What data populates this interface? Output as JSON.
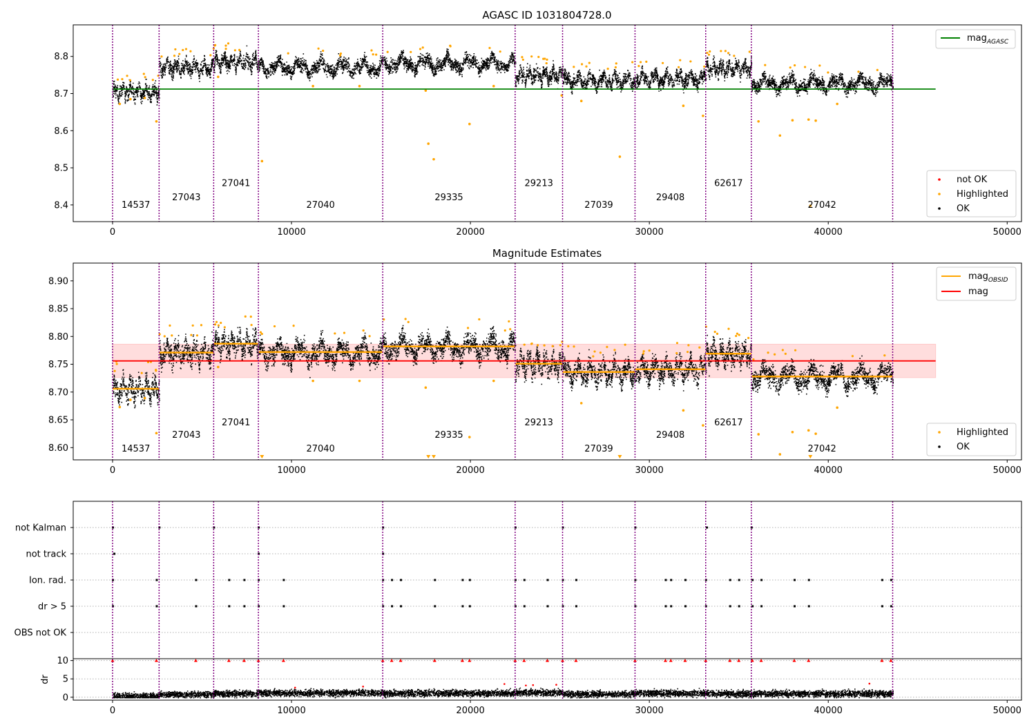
{
  "chart_data": [
    {
      "type": "scatter",
      "title": "AGASC ID 1031804728.0",
      "xlim": [
        -2200,
        50800
      ],
      "ylim": [
        8.355,
        8.885
      ],
      "x_ticks": [
        0,
        10000,
        20000,
        30000,
        40000,
        50000
      ],
      "x_tick_labels": [
        "0",
        "10000",
        "20000",
        "30000",
        "40000",
        "50000"
      ],
      "y_ticks": [
        8.4,
        8.5,
        8.6,
        8.7,
        8.8
      ],
      "y_tick_labels": [
        "8.4",
        "8.5",
        "8.6",
        "8.7",
        "8.8"
      ],
      "reference_line": {
        "label": "mag_AGASC",
        "value": 8.712,
        "x_range": [
          0,
          46000
        ],
        "color": "#008000"
      },
      "legends": [
        {
          "position": "top-right",
          "items": [
            {
              "label": "mag",
              "subscript": "AGASC",
              "kind": "line",
              "color": "#008000"
            }
          ]
        },
        {
          "position": "bottom-right",
          "items": [
            {
              "label": "not OK",
              "kind": "dot",
              "color": "#ff0000"
            },
            {
              "label": "Highlighted",
              "kind": "dot",
              "color": "#ffa500"
            },
            {
              "label": "OK",
              "kind": "dot",
              "color": "#000000"
            }
          ]
        }
      ],
      "highlighted_points": [
        {
          "x": 400,
          "y": 8.672
        },
        {
          "x": 1000,
          "y": 8.685
        },
        {
          "x": 1800,
          "y": 8.688
        },
        {
          "x": 2450,
          "y": 8.625
        },
        {
          "x": 5900,
          "y": 8.745
        },
        {
          "x": 8350,
          "y": 8.518
        },
        {
          "x": 11200,
          "y": 8.72
        },
        {
          "x": 13800,
          "y": 8.72
        },
        {
          "x": 17500,
          "y": 8.708
        },
        {
          "x": 17650,
          "y": 8.565
        },
        {
          "x": 17950,
          "y": 8.523
        },
        {
          "x": 19950,
          "y": 8.618
        },
        {
          "x": 21300,
          "y": 8.72
        },
        {
          "x": 25100,
          "y": 8.695
        },
        {
          "x": 26200,
          "y": 8.68
        },
        {
          "x": 28350,
          "y": 8.53
        },
        {
          "x": 31900,
          "y": 8.667
        },
        {
          "x": 33000,
          "y": 8.64
        },
        {
          "x": 36100,
          "y": 8.625
        },
        {
          "x": 37300,
          "y": 8.587
        },
        {
          "x": 38000,
          "y": 8.628
        },
        {
          "x": 38900,
          "y": 8.63
        },
        {
          "x": 39300,
          "y": 8.627
        },
        {
          "x": 39000,
          "y": 8.398
        },
        {
          "x": 40500,
          "y": 8.672
        }
      ]
    },
    {
      "type": "scatter",
      "title": "Magnitude Estimates",
      "xlim": [
        -2200,
        50800
      ],
      "ylim": [
        8.578,
        8.932
      ],
      "x_ticks": [
        0,
        10000,
        20000,
        30000,
        40000,
        50000
      ],
      "x_tick_labels": [
        "0",
        "10000",
        "20000",
        "30000",
        "40000",
        "50000"
      ],
      "y_ticks": [
        8.6,
        8.65,
        8.7,
        8.75,
        8.8,
        8.85,
        8.9
      ],
      "y_tick_labels": [
        "8.60",
        "8.65",
        "8.70",
        "8.75",
        "8.80",
        "8.85",
        "8.90"
      ],
      "mag": {
        "label": "mag",
        "value": 8.756,
        "band": [
          8.726,
          8.786
        ],
        "x_range": [
          0,
          46000
        ],
        "color": "#ff0000"
      },
      "legends": [
        {
          "position": "top-right",
          "items": [
            {
              "label": "mag",
              "subscript": "OBSID",
              "kind": "line",
              "color": "#ffa500"
            },
            {
              "label": "mag",
              "kind": "line",
              "color": "#ff0000"
            }
          ]
        },
        {
          "position": "bottom-right",
          "items": [
            {
              "label": "Highlighted",
              "kind": "dot",
              "color": "#ffa500"
            },
            {
              "label": "OK",
              "kind": "dot",
              "color": "#000000"
            }
          ]
        }
      ],
      "highlighted_points": [
        {
          "x": 400,
          "y": 8.673
        },
        {
          "x": 1000,
          "y": 8.686
        },
        {
          "x": 1800,
          "y": 8.689
        },
        {
          "x": 2450,
          "y": 8.626
        },
        {
          "x": 5900,
          "y": 8.745
        },
        {
          "x": 11200,
          "y": 8.72
        },
        {
          "x": 13800,
          "y": 8.72
        },
        {
          "x": 17500,
          "y": 8.708
        },
        {
          "x": 19950,
          "y": 8.619
        },
        {
          "x": 21300,
          "y": 8.72
        },
        {
          "x": 26200,
          "y": 8.68
        },
        {
          "x": 31900,
          "y": 8.667
        },
        {
          "x": 33000,
          "y": 8.64
        },
        {
          "x": 36100,
          "y": 8.624
        },
        {
          "x": 37300,
          "y": 8.588
        },
        {
          "x": 38000,
          "y": 8.628
        },
        {
          "x": 38900,
          "y": 8.631
        },
        {
          "x": 39300,
          "y": 8.625
        },
        {
          "x": 40500,
          "y": 8.672
        }
      ],
      "clipped_low_markers_x": [
        8350,
        17650,
        17950,
        28350,
        39000
      ]
    },
    {
      "type": "scatter",
      "title": "",
      "xlim": [
        -2200,
        50800
      ],
      "x_ticks": [
        0,
        10000,
        20000,
        30000,
        40000,
        50000
      ],
      "flag_rows": [
        "not Kalman",
        "not track",
        "Ion. rad.",
        "dr > 5",
        "OBS not OK"
      ],
      "flag_events": {
        "not Kalman": [
          0,
          2600,
          5650,
          8150,
          15100,
          22500,
          25150,
          29200,
          33200,
          35700
        ],
        "not track": [
          80,
          8150,
          15100
        ],
        "Ion. rad.": [
          0,
          2450,
          4650,
          6500,
          7350,
          8150,
          9550,
          15100,
          15600,
          16100,
          18000,
          19550,
          19950,
          22500,
          23000,
          24300,
          25150,
          25900,
          29200,
          30900,
          31200,
          32000,
          33150,
          34500,
          35000,
          35750,
          36250,
          38100,
          38900,
          43000,
          43500
        ],
        "dr > 5": [
          0,
          2450,
          4650,
          6500,
          7350,
          8150,
          9550,
          15100,
          15600,
          16100,
          18000,
          19550,
          19950,
          22500,
          23000,
          24300,
          25150,
          25900,
          29200,
          30900,
          31200,
          32000,
          33150,
          34500,
          35000,
          35750,
          36250,
          38100,
          38900,
          43000,
          43500
        ],
        "OBS not OK": []
      }
    },
    {
      "type": "scatter",
      "title": "",
      "ylabel": "dr",
      "xlim": [
        -2200,
        50800
      ],
      "ylim": [
        -0.8,
        10.5
      ],
      "x_ticks": [
        0,
        10000,
        20000,
        30000,
        40000,
        50000
      ],
      "x_tick_labels": [
        "0",
        "10000",
        "20000",
        "30000",
        "40000",
        "50000"
      ],
      "y_ticks": [
        0,
        5,
        10
      ],
      "y_tick_labels": [
        "0",
        "5",
        "10"
      ],
      "clipped_at": 10,
      "dr_mean_by_segment": [
        0.4,
        0.9,
        1.1,
        1.3,
        1.2,
        1.4,
        1.0,
        1.2,
        1.1,
        1.1,
        1.0
      ],
      "outliers": [
        {
          "x": 10200,
          "y": 2.6
        },
        {
          "x": 14000,
          "y": 2.9
        },
        {
          "x": 21900,
          "y": 3.6
        },
        {
          "x": 23100,
          "y": 3.2
        },
        {
          "x": 23500,
          "y": 3.3
        },
        {
          "x": 24800,
          "y": 3.4
        },
        {
          "x": 42300,
          "y": 3.7
        }
      ]
    }
  ],
  "segments": [
    {
      "id": "14537",
      "start": 0,
      "end": 2600,
      "mag": 8.706,
      "upper_y": 8.4,
      "lower_y": 8.598
    },
    {
      "id": "27043",
      "start": 2600,
      "end": 5650,
      "mag": 8.771,
      "upper_y": 8.42,
      "lower_y": 8.623
    },
    {
      "id": "27041",
      "start": 5650,
      "end": 8150,
      "mag": 8.787,
      "upper_y": 8.458,
      "lower_y": 8.645
    },
    {
      "id": "27040",
      "start": 8150,
      "end": 15100,
      "mag": 8.772,
      "upper_y": 8.4,
      "lower_y": 8.598
    },
    {
      "id": "29335",
      "start": 15100,
      "end": 22500,
      "mag": 8.782,
      "upper_y": 8.42,
      "lower_y": 8.623
    },
    {
      "id": "29213",
      "start": 22500,
      "end": 25150,
      "mag": 8.751,
      "upper_y": 8.458,
      "lower_y": 8.645
    },
    {
      "id": "27039",
      "start": 25150,
      "end": 29200,
      "mag": 8.736,
      "upper_y": 8.4,
      "lower_y": 8.598
    },
    {
      "id": "29408",
      "start": 29200,
      "end": 33150,
      "mag": 8.741,
      "upper_y": 8.42,
      "lower_y": 8.623
    },
    {
      "id": "62617",
      "start": 33150,
      "end": 35700,
      "mag": 8.769,
      "upper_y": 8.458,
      "lower_y": 8.645
    },
    {
      "id": "27042",
      "start": 35700,
      "end": 43600,
      "mag": 8.728,
      "upper_y": 8.4,
      "lower_y": 8.598
    }
  ],
  "colors": {
    "ok": "#000000",
    "highlighted": "#ffa500",
    "not_ok": "#ff0000",
    "agasc": "#008000",
    "mag": "#ff0000",
    "obsid": "#ffa500",
    "boundary": "#800080",
    "band": "#ffdddd",
    "flag_grid": "#b0b0b0"
  }
}
